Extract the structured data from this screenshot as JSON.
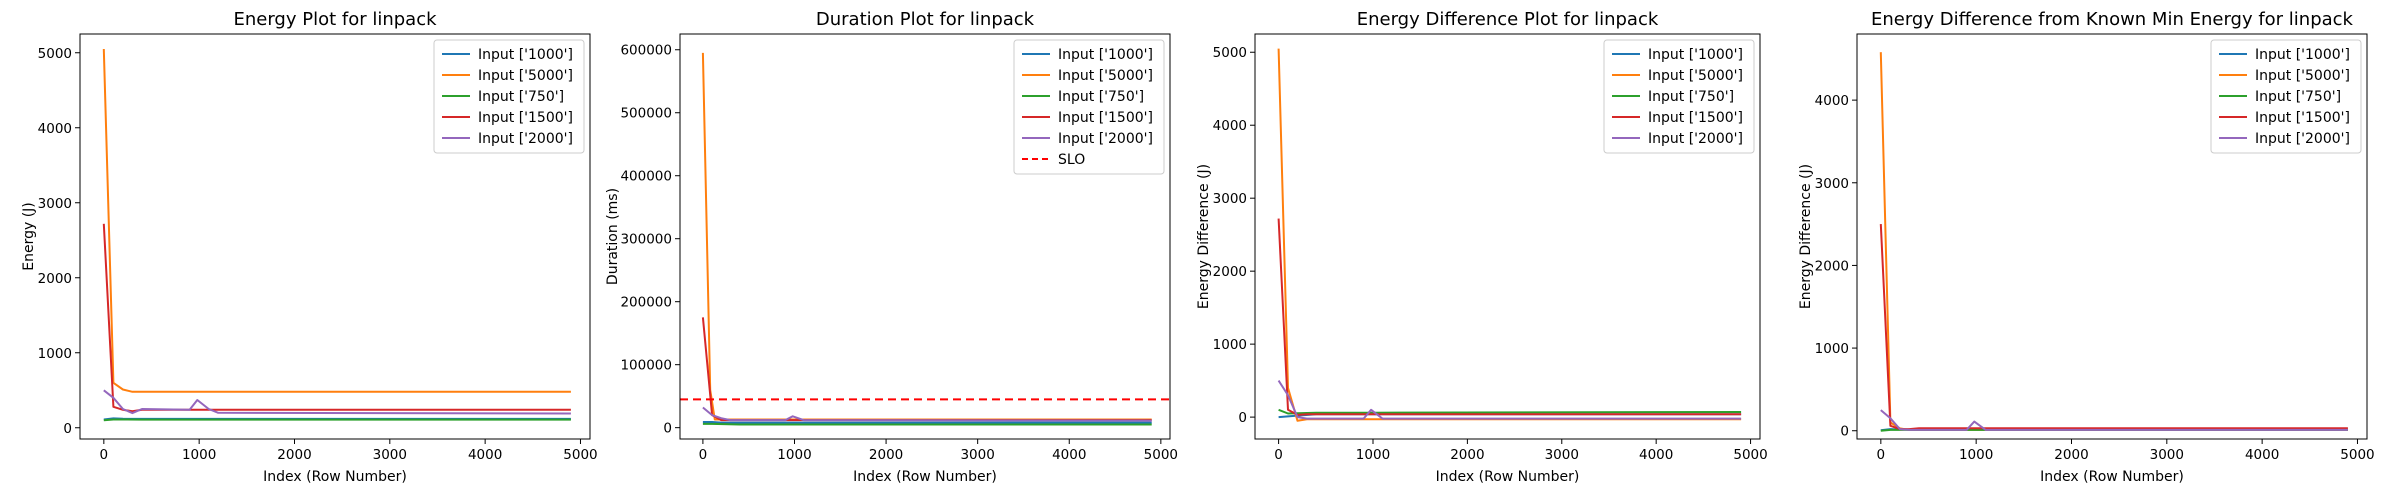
{
  "colors": {
    "s1000": "#1f77b4",
    "s5000": "#ff7f0e",
    "s750": "#2ca02c",
    "s1500": "#d62728",
    "s2000": "#9467bd",
    "slo": "#ff0000"
  },
  "chart_data": [
    {
      "type": "line",
      "title": "Energy Plot for linpack",
      "xlabel": "Index (Row Number)",
      "ylabel": "Energy (J)",
      "xlim": [
        -250,
        5100
      ],
      "ylim": [
        -150,
        5250
      ],
      "xticks": [
        0,
        1000,
        2000,
        3000,
        4000,
        5000
      ],
      "yticks": [
        0,
        1000,
        2000,
        3000,
        4000,
        5000
      ],
      "legend": "top-right",
      "series": [
        {
          "name": "Input ['1000']",
          "color_key": "s1000",
          "x": [
            0,
            100,
            200,
            400,
            1000,
            4900
          ],
          "y": [
            110,
            125,
            120,
            118,
            118,
            118
          ]
        },
        {
          "name": "Input ['5000']",
          "color_key": "s5000",
          "x": [
            0,
            100,
            200,
            300,
            400,
            1000,
            4900
          ],
          "y": [
            5050,
            600,
            510,
            480,
            480,
            480,
            480
          ]
        },
        {
          "name": "Input ['750']",
          "color_key": "s750",
          "x": [
            0,
            100,
            400,
            1000,
            4900
          ],
          "y": [
            100,
            110,
            108,
            108,
            108
          ]
        },
        {
          "name": "Input ['1500']",
          "color_key": "s1500",
          "x": [
            0,
            100,
            200,
            300,
            400,
            1000,
            4900
          ],
          "y": [
            2720,
            280,
            240,
            220,
            240,
            240,
            240
          ]
        },
        {
          "name": "Input ['2000']",
          "color_key": "s2000",
          "x": [
            0,
            100,
            200,
            300,
            400,
            900,
            980,
            1100,
            1200,
            4900
          ],
          "y": [
            500,
            400,
            250,
            195,
            250,
            240,
            370,
            250,
            200,
            190
          ]
        }
      ]
    },
    {
      "type": "line",
      "title": "Duration Plot for linpack",
      "xlabel": "Index (Row Number)",
      "ylabel": "Duration (ms)",
      "xlim": [
        -250,
        5100
      ],
      "ylim": [
        -18000,
        625000
      ],
      "xticks": [
        0,
        1000,
        2000,
        3000,
        4000,
        5000
      ],
      "yticks": [
        0,
        100000,
        200000,
        300000,
        400000,
        500000,
        600000
      ],
      "legend": "top-right",
      "slo": {
        "label": "SLO",
        "value": 45000
      },
      "series": [
        {
          "name": "Input ['1000']",
          "color_key": "s1000",
          "x": [
            0,
            100,
            200,
            400,
            1000,
            4900
          ],
          "y": [
            9000,
            9000,
            8000,
            8000,
            8000,
            8000
          ]
        },
        {
          "name": "Input ['5000']",
          "color_key": "s5000",
          "x": [
            0,
            80,
            130,
            200,
            400,
            1000,
            4900
          ],
          "y": [
            595000,
            60000,
            13000,
            13000,
            13000,
            13000,
            13000
          ]
        },
        {
          "name": "Input ['750']",
          "color_key": "s750",
          "x": [
            0,
            100,
            400,
            1000,
            4900
          ],
          "y": [
            6000,
            6000,
            5000,
            5000,
            5000
          ]
        },
        {
          "name": "Input ['1500']",
          "color_key": "s1500",
          "x": [
            0,
            100,
            200,
            400,
            1000,
            4900
          ],
          "y": [
            175000,
            20000,
            12000,
            12000,
            12000,
            12000
          ]
        },
        {
          "name": "Input ['2000']",
          "color_key": "s2000",
          "x": [
            0,
            100,
            200,
            300,
            900,
            980,
            1100,
            4900
          ],
          "y": [
            32000,
            20000,
            15000,
            12000,
            12000,
            18000,
            12000,
            11000
          ]
        }
      ]
    },
    {
      "type": "line",
      "title": "Energy Difference Plot for linpack",
      "xlabel": "Index (Row Number)",
      "ylabel": "Energy Difference (J)",
      "xlim": [
        -250,
        5100
      ],
      "ylim": [
        -300,
        5250
      ],
      "xticks": [
        0,
        1000,
        2000,
        3000,
        4000,
        5000
      ],
      "yticks": [
        0,
        1000,
        2000,
        3000,
        4000,
        5000
      ],
      "legend": "top-right",
      "series": [
        {
          "name": "Input ['1000']",
          "color_key": "s1000",
          "x": [
            0,
            100,
            200,
            400,
            1000,
            4900
          ],
          "y": [
            0,
            10,
            20,
            40,
            40,
            40
          ]
        },
        {
          "name": "Input ['5000']",
          "color_key": "s5000",
          "x": [
            0,
            100,
            200,
            300,
            400,
            1000,
            4900
          ],
          "y": [
            5050,
            400,
            -50,
            -30,
            -30,
            -30,
            -30
          ]
        },
        {
          "name": "Input ['750']",
          "color_key": "s750",
          "x": [
            0,
            100,
            400,
            1000,
            4900
          ],
          "y": [
            100,
            50,
            60,
            60,
            70
          ]
        },
        {
          "name": "Input ['1500']",
          "color_key": "s1500",
          "x": [
            0,
            100,
            200,
            300,
            400,
            1000,
            4900
          ],
          "y": [
            2720,
            100,
            30,
            40,
            40,
            40,
            40
          ]
        },
        {
          "name": "Input ['2000']",
          "color_key": "s2000",
          "x": [
            0,
            100,
            200,
            300,
            900,
            980,
            1100,
            4900
          ],
          "y": [
            500,
            300,
            0,
            -20,
            -20,
            100,
            -20,
            -20
          ]
        }
      ]
    },
    {
      "type": "line",
      "title": "Energy Difference from Known Min Energy for linpack",
      "xlabel": "Index (Row Number)",
      "ylabel": "Energy Difference (J)",
      "xlim": [
        -250,
        5100
      ],
      "ylim": [
        -100,
        4800
      ],
      "xticks": [
        0,
        1000,
        2000,
        3000,
        4000,
        5000
      ],
      "yticks": [
        0,
        1000,
        2000,
        3000,
        4000
      ],
      "legend": "top-right",
      "series": [
        {
          "name": "Input ['1000']",
          "color_key": "s1000",
          "x": [
            0,
            100,
            200,
            400,
            1000,
            4900
          ],
          "y": [
            5,
            20,
            15,
            15,
            15,
            15
          ]
        },
        {
          "name": "Input ['5000']",
          "color_key": "s5000",
          "x": [
            0,
            100,
            200,
            300,
            400,
            1000,
            4900
          ],
          "y": [
            4580,
            100,
            30,
            10,
            10,
            10,
            10
          ]
        },
        {
          "name": "Input ['750']",
          "color_key": "s750",
          "x": [
            0,
            100,
            400,
            1000,
            4900
          ],
          "y": [
            0,
            10,
            10,
            10,
            10
          ]
        },
        {
          "name": "Input ['1500']",
          "color_key": "s1500",
          "x": [
            0,
            100,
            200,
            300,
            400,
            1000,
            4900
          ],
          "y": [
            2500,
            60,
            20,
            20,
            30,
            30,
            30
          ]
        },
        {
          "name": "Input ['2000']",
          "color_key": "s2000",
          "x": [
            0,
            100,
            200,
            300,
            900,
            980,
            1100,
            4900
          ],
          "y": [
            250,
            150,
            20,
            10,
            10,
            110,
            10,
            10
          ]
        }
      ]
    }
  ]
}
